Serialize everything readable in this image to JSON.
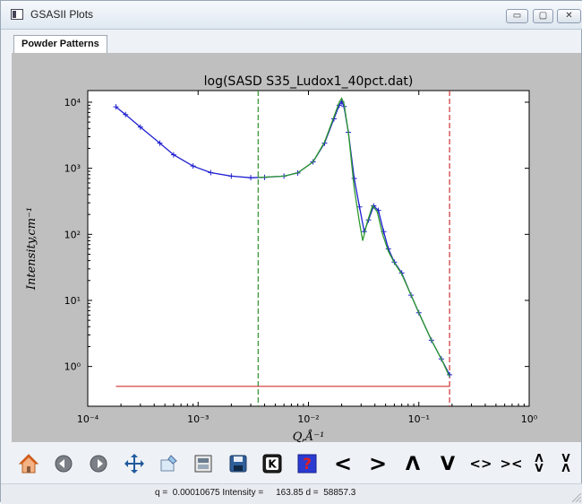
{
  "window": {
    "title": "GSASII Plots",
    "controls": {
      "minimize": "▭",
      "maximize": "▢",
      "close": "✕"
    }
  },
  "tabs": [
    {
      "label": "Powder Patterns",
      "active": true
    }
  ],
  "chart_data": {
    "type": "line",
    "title": "log(SASD S35_Ludox1_40pct.dat)",
    "xlabel": "Q,Å⁻¹",
    "ylabel": "Intensity,cm⁻¹",
    "xscale": "log",
    "yscale": "log",
    "xlim": [
      0.0001,
      1
    ],
    "ylim": [
      0.25,
      15000
    ],
    "x_ticks": [
      "10⁻⁴",
      "10⁻³",
      "10⁻²",
      "10⁻¹",
      "10⁰"
    ],
    "y_ticks": [
      "10⁰",
      "10¹",
      "10²",
      "10³",
      "10⁴"
    ],
    "vlines": [
      {
        "x": 0.0035,
        "color": "#2f8f2f",
        "style": "dashed"
      },
      {
        "x": 0.19,
        "color": "#d03030",
        "style": "dashed"
      }
    ],
    "hline": {
      "y": 0.5,
      "xrange": [
        0.00018,
        0.19
      ],
      "color": "#d03030"
    },
    "series": [
      {
        "role": "observed",
        "color": "#1f1fd0",
        "markers": "+",
        "x": [
          0.00018,
          0.00022,
          0.0003,
          0.00045,
          0.0006,
          0.0009,
          0.0013,
          0.002,
          0.003,
          0.004,
          0.006,
          0.008,
          0.011,
          0.014,
          0.017,
          0.019,
          0.02,
          0.021,
          0.023,
          0.026,
          0.029,
          0.032,
          0.035,
          0.039,
          0.043,
          0.048,
          0.053,
          0.06,
          0.07,
          0.085,
          0.1,
          0.13,
          0.16,
          0.19
        ],
        "y": [
          8500,
          6500,
          4200,
          2400,
          1600,
          1080,
          860,
          760,
          720,
          730,
          760,
          850,
          1250,
          2400,
          5600,
          9000,
          10200,
          8600,
          3500,
          700,
          260,
          110,
          165,
          270,
          230,
          110,
          60,
          38,
          26,
          12,
          6.5,
          2.5,
          1.3,
          0.75
        ]
      },
      {
        "role": "calculated",
        "color": "#2e9a2e",
        "x": [
          0.0035,
          0.006,
          0.008,
          0.011,
          0.014,
          0.017,
          0.019,
          0.02,
          0.021,
          0.023,
          0.026,
          0.029,
          0.031,
          0.034,
          0.038,
          0.042,
          0.047,
          0.053,
          0.06,
          0.07,
          0.085,
          0.1,
          0.13,
          0.16,
          0.19
        ],
        "y": [
          725,
          760,
          850,
          1250,
          2500,
          6000,
          10000,
          11500,
          9500,
          3500,
          500,
          150,
          80,
          150,
          270,
          220,
          100,
          55,
          37,
          25,
          12,
          6.5,
          2.5,
          1.3,
          0.7
        ]
      }
    ]
  },
  "toolbar": {
    "buttons": [
      {
        "name": "home-button",
        "icon": "home-icon"
      },
      {
        "name": "back-button",
        "icon": "back-icon"
      },
      {
        "name": "forward-button",
        "icon": "forward-icon"
      },
      {
        "name": "pan-button",
        "icon": "pan-icon"
      },
      {
        "name": "zoom-button",
        "icon": "zoom-icon"
      },
      {
        "name": "configure-subplots-button",
        "icon": "subplots-icon"
      },
      {
        "name": "save-button",
        "icon": "save-icon"
      },
      {
        "name": "key-button",
        "icon": "key-icon"
      },
      {
        "name": "help-button",
        "icon": "help-icon"
      }
    ],
    "glyphs": [
      "<",
      ">",
      "Λ",
      "V",
      "<>",
      "><",
      "Ʌ\nV",
      "V\nɅ"
    ]
  },
  "status": {
    "text": "q =  0.00010675 Intensity =     163.85 d =  58857.3"
  }
}
